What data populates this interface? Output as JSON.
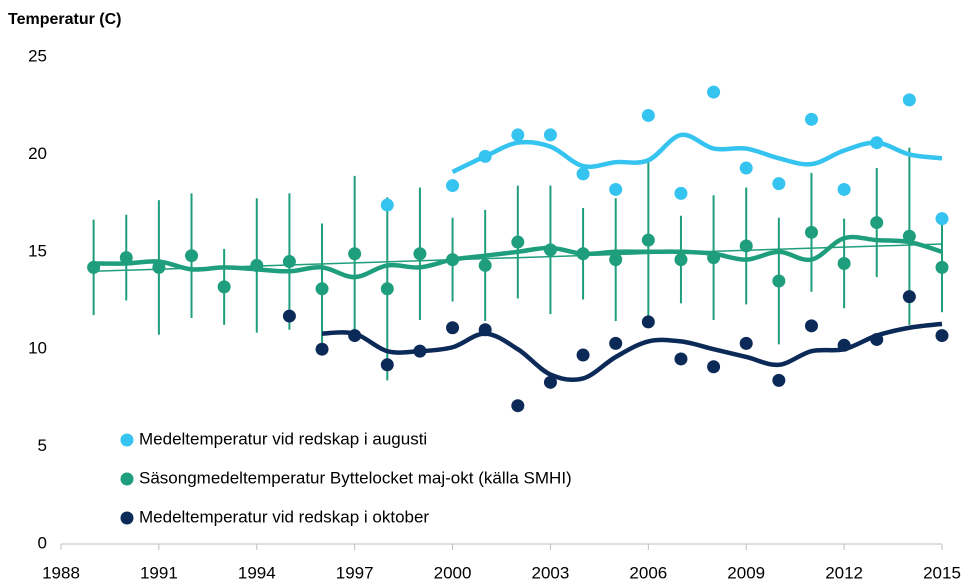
{
  "chart_data": {
    "type": "scatter",
    "title": "Temperatur (C)",
    "xlim": [
      1988,
      2015
    ],
    "xticks": [
      1988,
      1991,
      1994,
      1997,
      2000,
      2003,
      2006,
      2009,
      2012,
      2015
    ],
    "ylim": [
      0,
      25
    ],
    "yticks": [
      0,
      5,
      10,
      15,
      20,
      25
    ],
    "series": [
      {
        "name": "Medeltemperatur vid redskap i augusti",
        "color": "#35c3ef",
        "x": [
          1998,
          1999,
          2000,
          2001,
          2002,
          2003,
          2004,
          2005,
          2006,
          2007,
          2008,
          2009,
          2010,
          2011,
          2012,
          2013,
          2014,
          2015
        ],
        "values": [
          17.4,
          null,
          18.4,
          19.9,
          21.0,
          21.0,
          19.0,
          18.2,
          22.0,
          18.0,
          23.2,
          19.3,
          18.5,
          21.8,
          18.2,
          20.6,
          22.8,
          16.7
        ],
        "smooth": [
          null,
          null,
          19.1,
          19.9,
          20.6,
          20.4,
          19.4,
          19.6,
          19.7,
          21.0,
          20.3,
          20.3,
          19.8,
          19.5,
          20.2,
          20.6,
          20.0,
          19.8
        ]
      },
      {
        "name": "Säsongmedeltemperatur Byttelocket maj-okt (källa SMHI)",
        "color": "#1f9e7d",
        "x": [
          1989,
          1990,
          1991,
          1992,
          1993,
          1994,
          1995,
          1996,
          1997,
          1998,
          1999,
          2000,
          2001,
          2002,
          2003,
          2004,
          2005,
          2006,
          2007,
          2008,
          2009,
          2010,
          2011,
          2012,
          2013,
          2014,
          2015
        ],
        "values": [
          14.2,
          14.7,
          14.2,
          14.8,
          13.2,
          14.3,
          14.5,
          13.1,
          14.9,
          13.1,
          14.9,
          14.6,
          14.3,
          15.5,
          15.1,
          14.9,
          14.6,
          15.6,
          14.6,
          14.7,
          15.3,
          13.5,
          16.0,
          14.4,
          16.5,
          15.8,
          14.2
        ],
        "errors": [
          2.45,
          2.2,
          3.45,
          3.2,
          1.95,
          3.45,
          3.5,
          3.35,
          4.0,
          4.7,
          3.4,
          2.15,
          2.85,
          2.9,
          3.3,
          2.35,
          3.15,
          4.15,
          2.25,
          3.2,
          3.0,
          3.25,
          3.05,
          2.3,
          2.8,
          4.55,
          2.3
        ],
        "smooth": [
          14.4,
          14.4,
          14.5,
          14.1,
          14.2,
          14.1,
          14.0,
          14.2,
          13.7,
          14.3,
          14.2,
          14.6,
          14.8,
          15.0,
          15.2,
          14.9,
          15.0,
          15.0,
          15.0,
          14.9,
          14.6,
          15.0,
          14.6,
          15.7,
          15.6,
          15.5,
          15.0
        ]
      },
      {
        "name": "Medeltemperatur vid redskap i oktober",
        "color": "#0c2a58",
        "x": [
          1995,
          1996,
          1997,
          1998,
          1999,
          2000,
          2001,
          2002,
          2003,
          2004,
          2005,
          2006,
          2007,
          2008,
          2009,
          2010,
          2011,
          2012,
          2013,
          2014,
          2015
        ],
        "values": [
          11.7,
          10.0,
          10.7,
          9.2,
          9.9,
          11.1,
          11.0,
          7.1,
          8.3,
          9.7,
          10.3,
          11.4,
          9.5,
          9.1,
          10.3,
          8.4,
          11.2,
          10.2,
          10.5,
          12.7,
          10.7
        ],
        "smooth": [
          null,
          10.8,
          10.8,
          9.9,
          9.9,
          10.1,
          10.8,
          10.0,
          8.7,
          8.5,
          9.6,
          10.4,
          10.4,
          10.0,
          9.6,
          9.2,
          9.9,
          10.0,
          10.7,
          11.1,
          11.3
        ]
      }
    ],
    "trend": {
      "color": "#1f9e7d",
      "x": [
        1989,
        2015
      ],
      "values": [
        14.0,
        15.4
      ]
    },
    "legend": "lower-left"
  }
}
